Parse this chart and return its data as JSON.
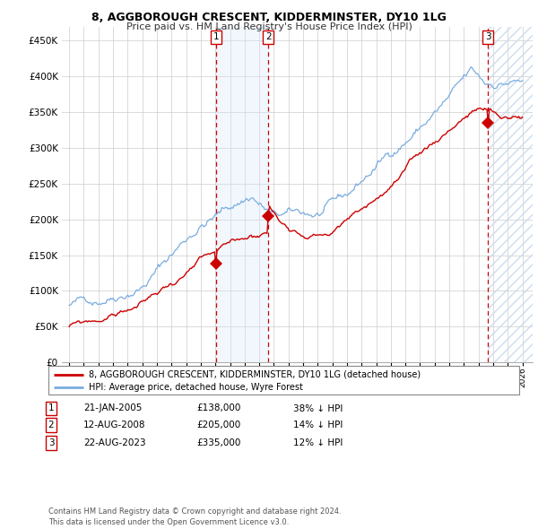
{
  "title": "8, AGGBOROUGH CRESCENT, KIDDERMINSTER, DY10 1LG",
  "subtitle": "Price paid vs. HM Land Registry's House Price Index (HPI)",
  "legend_line1": "8, AGGBOROUGH CRESCENT, KIDDERMINSTER, DY10 1LG (detached house)",
  "legend_line2": "HPI: Average price, detached house, Wyre Forest",
  "sale_prices": [
    138000,
    205000,
    335000
  ],
  "table_rows": [
    [
      "1",
      "21-JAN-2005",
      "£138,000",
      "38% ↓ HPI"
    ],
    [
      "2",
      "12-AUG-2008",
      "£205,000",
      "14% ↓ HPI"
    ],
    [
      "3",
      "22-AUG-2023",
      "£335,000",
      "12% ↓ HPI"
    ]
  ],
  "footer": "Contains HM Land Registry data © Crown copyright and database right 2024.\nThis data is licensed under the Open Government Licence v3.0.",
  "hpi_color": "#7aade0",
  "price_color": "#cc0000",
  "vline_color": "#cc0000",
  "shade_color": "#d8eaf8",
  "ylim": [
    0,
    470000
  ],
  "yticks": [
    0,
    50000,
    100000,
    150000,
    200000,
    250000,
    300000,
    350000,
    400000,
    450000
  ],
  "background_color": "#ffffff",
  "sale_year_floats": [
    2005.055,
    2008.614,
    2023.641
  ]
}
